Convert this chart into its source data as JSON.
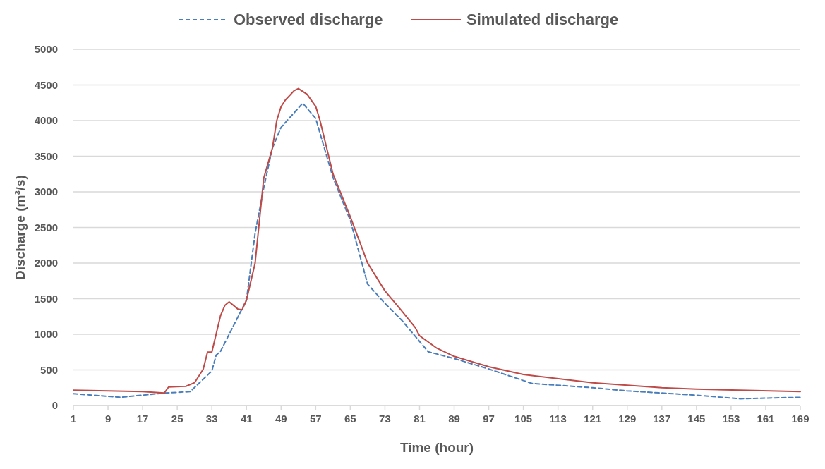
{
  "chart_data": {
    "type": "line",
    "xlabel": "Time (hour)",
    "ylabel": "Discharge (m³/s)",
    "xlim": [
      1,
      169
    ],
    "xticks": [
      1,
      9,
      17,
      25,
      33,
      41,
      49,
      57,
      65,
      73,
      81,
      89,
      97,
      105,
      113,
      121,
      129,
      137,
      145,
      153,
      161,
      169
    ],
    "ylim": [
      0,
      5000
    ],
    "yticks": [
      0,
      500,
      1000,
      1500,
      2000,
      2500,
      3000,
      3500,
      4000,
      4500,
      5000
    ],
    "grid": "y",
    "legend": "top",
    "marker": "none",
    "series": [
      {
        "name": "Observed discharge",
        "color": "#4a7ebb",
        "line_style": "dashed",
        "x": [
          1,
          12,
          22,
          28,
          33,
          34,
          35,
          41,
          43,
          45,
          47,
          49,
          54,
          57,
          61,
          65,
          69,
          73,
          77,
          81,
          83,
          89,
          97,
          105,
          107,
          121,
          129,
          145,
          155,
          169
        ],
        "values": [
          165,
          116,
          175,
          195,
          485,
          707,
          760,
          1480,
          2420,
          3060,
          3615,
          3905,
          4244,
          4030,
          3200,
          2600,
          1705,
          1434,
          1190,
          900,
          755,
          660,
          513,
          350,
          310,
          250,
          205,
          145,
          95,
          115
        ]
      },
      {
        "name": "Simulated discharge",
        "color": "#be4b48",
        "line_style": "solid",
        "x": [
          1,
          17,
          22,
          23,
          27,
          29,
          31,
          32,
          33,
          35,
          36,
          37,
          39,
          40,
          41,
          43,
          45,
          47,
          48,
          49,
          50,
          52,
          53,
          55,
          57,
          58,
          61,
          65,
          69,
          73,
          77,
          80,
          81,
          85,
          89,
          97,
          105,
          121,
          137,
          145,
          169
        ],
        "values": [
          215,
          195,
          175,
          260,
          270,
          320,
          510,
          750,
          750,
          1260,
          1405,
          1455,
          1355,
          1345,
          1480,
          2000,
          3195,
          3615,
          4000,
          4195,
          4290,
          4420,
          4450,
          4370,
          4200,
          4000,
          3250,
          2650,
          2000,
          1610,
          1320,
          1095,
          980,
          805,
          690,
          545,
          435,
          320,
          250,
          230,
          195
        ]
      }
    ]
  }
}
